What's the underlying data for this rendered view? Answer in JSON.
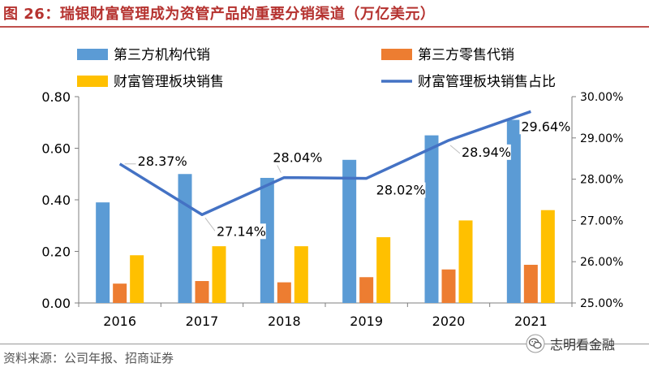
{
  "title": "图 26：瑞银财富管理成为资管产品的重要分销渠道（万亿美元）",
  "source": "资料来源：公司年报、招商证券",
  "watermark": "志明看金融",
  "colors": {
    "third_party_institutional": "#5b9bd5",
    "third_party_retail": "#ed7d31",
    "wealth_management_sales": "#ffc000",
    "share_line": "#4472c4",
    "title": "#b5322f"
  },
  "chart_data": {
    "type": "bar",
    "categories": [
      "2016",
      "2017",
      "2018",
      "2019",
      "2020",
      "2021"
    ],
    "series": [
      {
        "name": "第三方机构代销",
        "type": "bar",
        "axis": "left",
        "values": [
          0.39,
          0.5,
          0.485,
          0.555,
          0.65,
          0.71
        ]
      },
      {
        "name": "第三方零售代销",
        "type": "bar",
        "axis": "left",
        "values": [
          0.075,
          0.085,
          0.08,
          0.1,
          0.13,
          0.148
        ]
      },
      {
        "name": "财富管理板块销售",
        "type": "bar",
        "axis": "left",
        "values": [
          0.185,
          0.22,
          0.22,
          0.255,
          0.32,
          0.36
        ]
      },
      {
        "name": "财富管理板块销售占比",
        "type": "line",
        "axis": "right",
        "values": [
          28.37,
          27.14,
          28.04,
          28.02,
          28.94,
          29.64
        ],
        "labels": [
          "28.37%",
          "27.14%",
          "28.04%",
          "28.02%",
          "28.94%",
          "29.64%"
        ]
      }
    ],
    "y_left": {
      "min": 0,
      "max": 0.8,
      "ticks": [
        "0.00",
        "0.20",
        "0.40",
        "0.60",
        "0.80"
      ]
    },
    "y_right": {
      "min": 25,
      "max": 30,
      "ticks": [
        "25.00%",
        "26.00%",
        "27.00%",
        "28.00%",
        "29.00%",
        "30.00%"
      ]
    },
    "legend_position": "top",
    "grid": false
  }
}
